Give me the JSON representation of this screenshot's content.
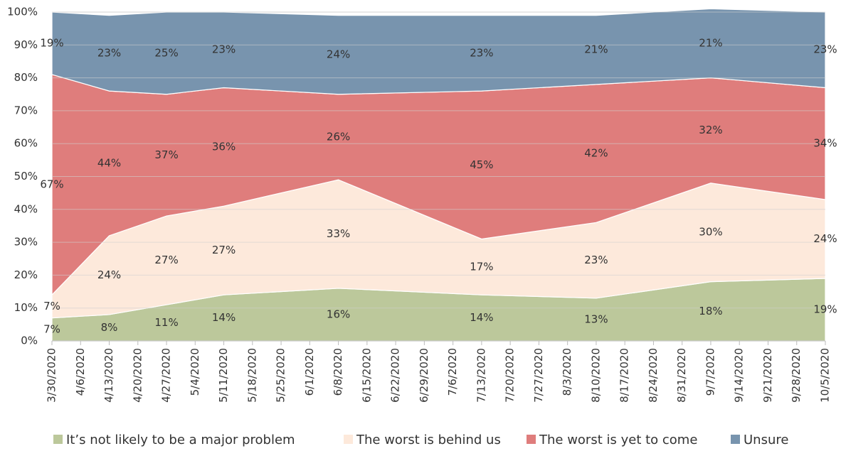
{
  "chart_data": {
    "type": "stacked_area",
    "categories": [
      "3/30/2020",
      "4/6/2020",
      "4/13/2020",
      "4/20/2020",
      "4/27/2020",
      "5/4/2020",
      "5/11/2020",
      "5/18/2020",
      "5/25/2020",
      "6/1/2020",
      "6/8/2020",
      "6/15/2020",
      "6/22/2020",
      "6/29/2020",
      "7/6/2020",
      "7/13/2020",
      "7/20/2020",
      "7/27/2020",
      "8/3/2020",
      "8/10/2020",
      "8/17/2020",
      "8/24/2020",
      "8/31/2020",
      "9/7/2020",
      "9/14/2020",
      "9/21/2020",
      "9/28/2020",
      "10/5/2020"
    ],
    "x": [
      "3/30/2020",
      "4/13/2020",
      "4/27/2020",
      "5/11/2020",
      "6/8/2020",
      "7/13/2020",
      "8/10/2020",
      "9/7/2020",
      "10/5/2020"
    ],
    "series": [
      {
        "name": "It’s not likely to be a major problem",
        "color": "#bcc89b",
        "values": [
          7,
          8,
          11,
          14,
          16,
          14,
          13,
          18,
          19
        ],
        "value_labels": [
          "7%",
          "8%",
          "11%",
          "14%",
          "16%",
          "14%",
          "13%",
          "18%",
          "19%"
        ]
      },
      {
        "name": "The worst is behind us",
        "color": "#fde9db",
        "values": [
          7,
          24,
          27,
          27,
          33,
          17,
          23,
          30,
          24
        ],
        "value_labels": [
          "7%",
          "24%",
          "27%",
          "27%",
          "33%",
          "17%",
          "23%",
          "30%",
          "24%"
        ]
      },
      {
        "name": "The worst is yet to come",
        "color": "#df7d7c",
        "values": [
          67,
          44,
          37,
          36,
          26,
          45,
          42,
          32,
          34
        ],
        "value_labels": [
          "67%",
          "44%",
          "37%",
          "36%",
          "26%",
          "45%",
          "42%",
          "32%",
          "34%"
        ]
      },
      {
        "name": "Unsure",
        "color": "#7894ae",
        "values": [
          19,
          23,
          25,
          23,
          24,
          23,
          21,
          21,
          23
        ],
        "value_labels": [
          "19%",
          "23%",
          "25%",
          "23%",
          "24%",
          "23%",
          "21%",
          "21%",
          "23%"
        ]
      }
    ],
    "ylim": [
      0,
      100
    ],
    "yticks": [
      {
        "value": 0,
        "label": "0%"
      },
      {
        "value": 10,
        "label": "10%"
      },
      {
        "value": 20,
        "label": "20%"
      },
      {
        "value": 30,
        "label": "30%"
      },
      {
        "value": 40,
        "label": "40%"
      },
      {
        "value": 50,
        "label": "50%"
      },
      {
        "value": 60,
        "label": "60%"
      },
      {
        "value": 70,
        "label": "70%"
      },
      {
        "value": 80,
        "label": "80%"
      },
      {
        "value": 90,
        "label": "90%"
      },
      {
        "value": 100,
        "label": "100%"
      }
    ],
    "grid": true,
    "legend": "bottom"
  }
}
